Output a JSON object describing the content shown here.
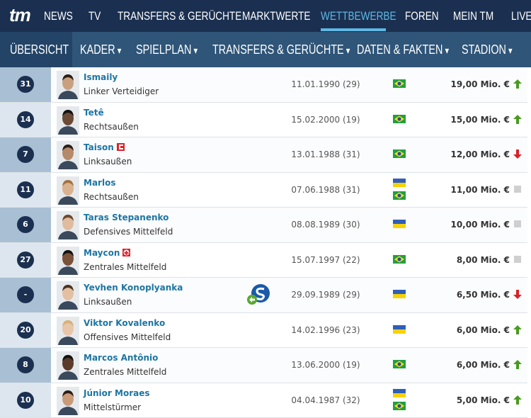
{
  "nav": {
    "logo": "tm",
    "items": [
      "NEWS",
      "TV",
      "TRANSFERS & GERÜCHTE",
      "MARKTWERTE",
      "WETTBEWERBE",
      "FOREN",
      "MEIN TM",
      "LIVE"
    ]
  },
  "subnav": {
    "items": [
      "ÜBERSICHT",
      "KADER",
      "SPIELPLAN",
      "TRANSFERS & GERÜCHTE",
      "DATEN & FAKTEN",
      "STADION"
    ]
  },
  "players": [
    {
      "number": 31,
      "name": "Ismaily",
      "position": "Linker Verteidiger",
      "born": "11.01.1990 (29)",
      "value": "19,00 Mio. €"
    },
    {
      "number": 14,
      "name": "Tetê",
      "position": "Rechtsaußen",
      "born": "15.02.2000 (19)",
      "value": "15,00 Mio. €"
    },
    {
      "number": 7,
      "name": "Taison",
      "position": "Linksaußen",
      "born": "13.01.1988 (31)",
      "value": "12,00 Mio. €"
    },
    {
      "number": 11,
      "name": "Marlos",
      "position": "Rechtsaußen",
      "born": "07.06.1988 (31)",
      "value": "11,00 Mio. €"
    },
    {
      "number": 6,
      "name": "Taras Stepanenko",
      "position": "Defensives Mittelfeld",
      "born": "08.08.1989 (30)",
      "value": "10,00 Mio. €"
    },
    {
      "number": 27,
      "name": "Maycon",
      "position": "Zentrales Mittelfeld",
      "born": "15.07.1997 (22)",
      "value": "8,00 Mio. €"
    },
    {
      "number": "-",
      "name": "Yevhen Konoplyanka",
      "position": "Linksaußen",
      "born": "29.09.1989 (29)",
      "value": "6,50 Mio. €"
    },
    {
      "number": 20,
      "name": "Viktor Kovalenko",
      "position": "Offensives Mittelfeld",
      "born": "14.02.1996 (23)",
      "value": "6,00 Mio. €"
    },
    {
      "number": 8,
      "name": "Marcos Antônio",
      "position": "Zentrales Mittelfeld",
      "born": "13.06.2000 (19)",
      "value": "6,00 Mio. €"
    },
    {
      "number": 10,
      "name": "Júnior Moraes",
      "position": "Mittelstürmer",
      "born": "04.04.1987 (32)",
      "value": "5,00 Mio. €"
    }
  ]
}
